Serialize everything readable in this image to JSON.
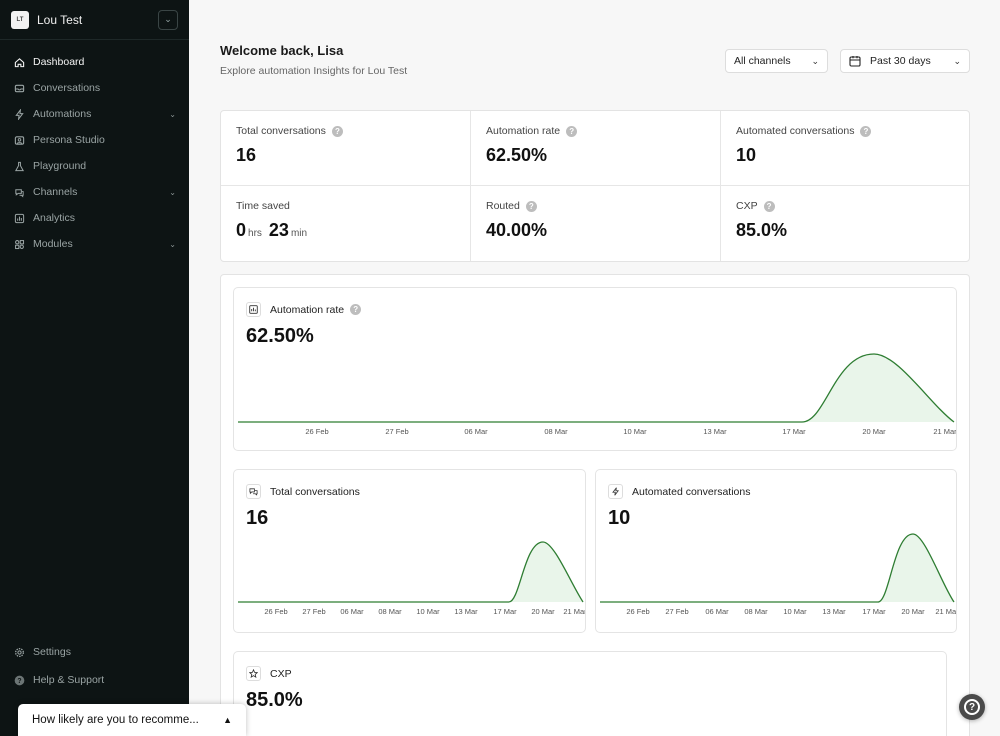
{
  "workspace": {
    "initials": "LT",
    "name": "Lou Test"
  },
  "sidebar": {
    "items": [
      {
        "label": "Dashboard",
        "icon": "home-icon",
        "active": true
      },
      {
        "label": "Conversations",
        "icon": "inbox-icon"
      },
      {
        "label": "Automations",
        "icon": "bolt-icon",
        "expandable": true
      },
      {
        "label": "Persona Studio",
        "icon": "persona-icon"
      },
      {
        "label": "Playground",
        "icon": "flask-icon"
      },
      {
        "label": "Channels",
        "icon": "chat-icon",
        "expandable": true
      },
      {
        "label": "Analytics",
        "icon": "chart-icon"
      },
      {
        "label": "Modules",
        "icon": "modules-icon",
        "expandable": true
      }
    ],
    "bottom": [
      {
        "label": "Settings",
        "icon": "gear-icon"
      },
      {
        "label": "Help & Support",
        "icon": "help-icon"
      }
    ]
  },
  "header": {
    "title": "Welcome back, Lisa",
    "subtitle": "Explore automation Insights for Lou Test",
    "channel_filter": "All channels",
    "date_filter": "Past 30 days"
  },
  "stats": {
    "total_conversations": {
      "label": "Total conversations",
      "value": "16"
    },
    "automation_rate": {
      "label": "Automation rate",
      "value": "62.50%"
    },
    "automated_conversations": {
      "label": "Automated conversations",
      "value": "10"
    },
    "time_saved": {
      "label": "Time saved",
      "hours": "0",
      "hours_unit": "hrs",
      "minutes": "23",
      "minutes_unit": "min"
    },
    "routed": {
      "label": "Routed",
      "value": "40.00%"
    },
    "cxp": {
      "label": "CXP",
      "value": "85.0%"
    }
  },
  "cards": {
    "automation_rate": {
      "title": "Automation rate",
      "value": "62.50%"
    },
    "total_conversations": {
      "title": "Total conversations",
      "value": "16"
    },
    "automated_conversations": {
      "title": "Automated conversations",
      "value": "10"
    },
    "cxp": {
      "title": "CXP",
      "value": "85.0%"
    }
  },
  "chart_data": [
    {
      "type": "area",
      "title": "Automation rate",
      "x": [
        "26 Feb",
        "27 Feb",
        "06 Mar",
        "08 Mar",
        "10 Mar",
        "13 Mar",
        "17 Mar",
        "20 Mar",
        "21 Mar"
      ],
      "series": [
        {
          "values": [
            0,
            0,
            0,
            0,
            0,
            0,
            0,
            62.5,
            0
          ]
        }
      ],
      "color": "#2e7d32"
    },
    {
      "type": "area",
      "title": "Total conversations",
      "x": [
        "26 Feb",
        "27 Feb",
        "06 Mar",
        "08 Mar",
        "10 Mar",
        "13 Mar",
        "17 Mar",
        "20 Mar",
        "21 Mar"
      ],
      "series": [
        {
          "values": [
            0,
            0,
            0,
            0,
            0,
            0,
            0,
            16,
            0
          ]
        }
      ],
      "color": "#2e7d32"
    },
    {
      "type": "area",
      "title": "Automated conversations",
      "x": [
        "26 Feb",
        "27 Feb",
        "06 Mar",
        "08 Mar",
        "10 Mar",
        "13 Mar",
        "17 Mar",
        "20 Mar",
        "21 Mar"
      ],
      "series": [
        {
          "values": [
            0,
            0,
            0,
            0,
            0,
            0,
            0,
            10,
            0
          ]
        }
      ],
      "color": "#2e7d32"
    }
  ],
  "nps_prompt": {
    "text": "How likely are you to recomme..."
  }
}
